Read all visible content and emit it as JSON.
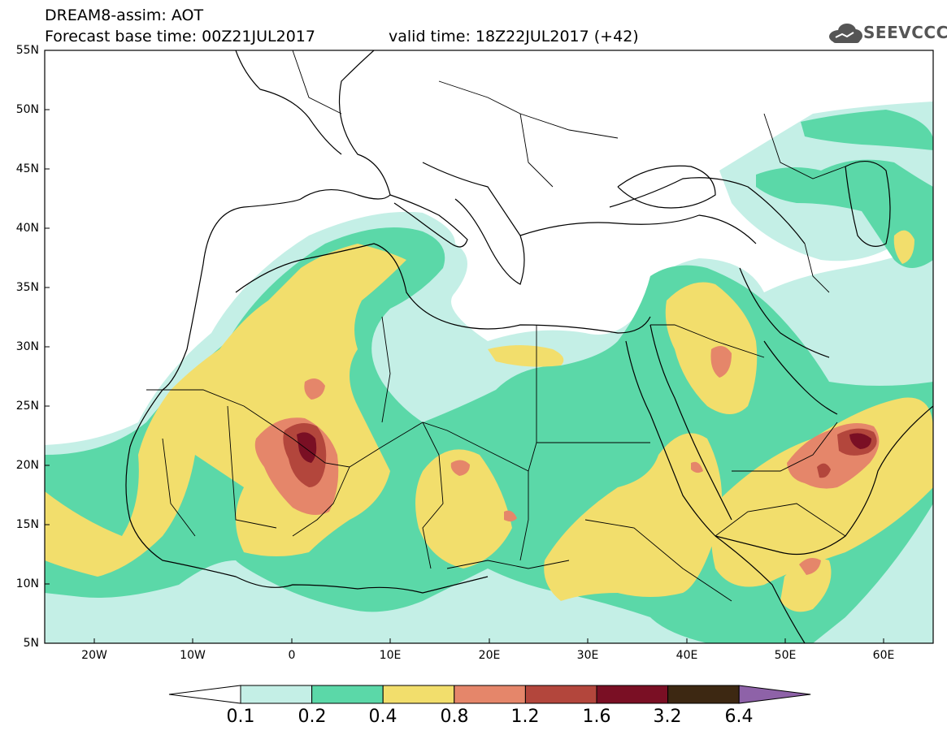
{
  "header": {
    "title_line1": "DREAM8-assim: AOT",
    "title_line2": "Forecast base time: 00Z21JUL2017",
    "valid_time": "valid time: 18Z22JUL2017 (+42)",
    "logo_text": "SEEVCCC"
  },
  "axes": {
    "lat_labels": [
      "55N",
      "50N",
      "45N",
      "40N",
      "35N",
      "30N",
      "25N",
      "20N",
      "15N",
      "10N",
      "5N"
    ],
    "lon_labels": [
      "20W",
      "10W",
      "0",
      "10E",
      "20E",
      "30E",
      "40E",
      "50E",
      "60E"
    ]
  },
  "colorbar": {
    "labels": [
      "0.1",
      "0.2",
      "0.4",
      "0.8",
      "1.2",
      "1.6",
      "3.2",
      "6.4"
    ],
    "colors": [
      "#ffffff",
      "#c4efe6",
      "#5bd8a8",
      "#f2de6c",
      "#e5866a",
      "#b3463c",
      "#7a0f24",
      "#3d2812",
      "#8e62a8"
    ]
  }
}
